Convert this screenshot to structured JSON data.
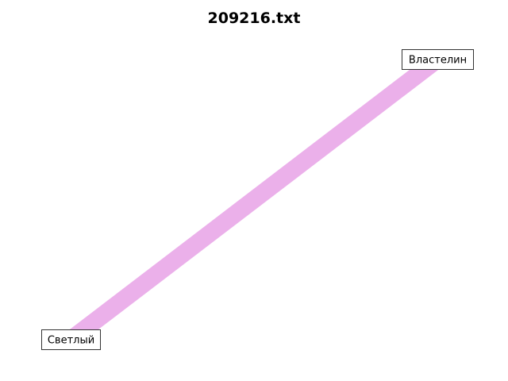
{
  "title": "209216.txt",
  "edge_color": "#ebb0ea",
  "nodes": [
    {
      "id": "n1",
      "label": "Властелин"
    },
    {
      "id": "n2",
      "label": "Светлый"
    }
  ],
  "edges": [
    {
      "from": "n1",
      "to": "n2"
    }
  ]
}
